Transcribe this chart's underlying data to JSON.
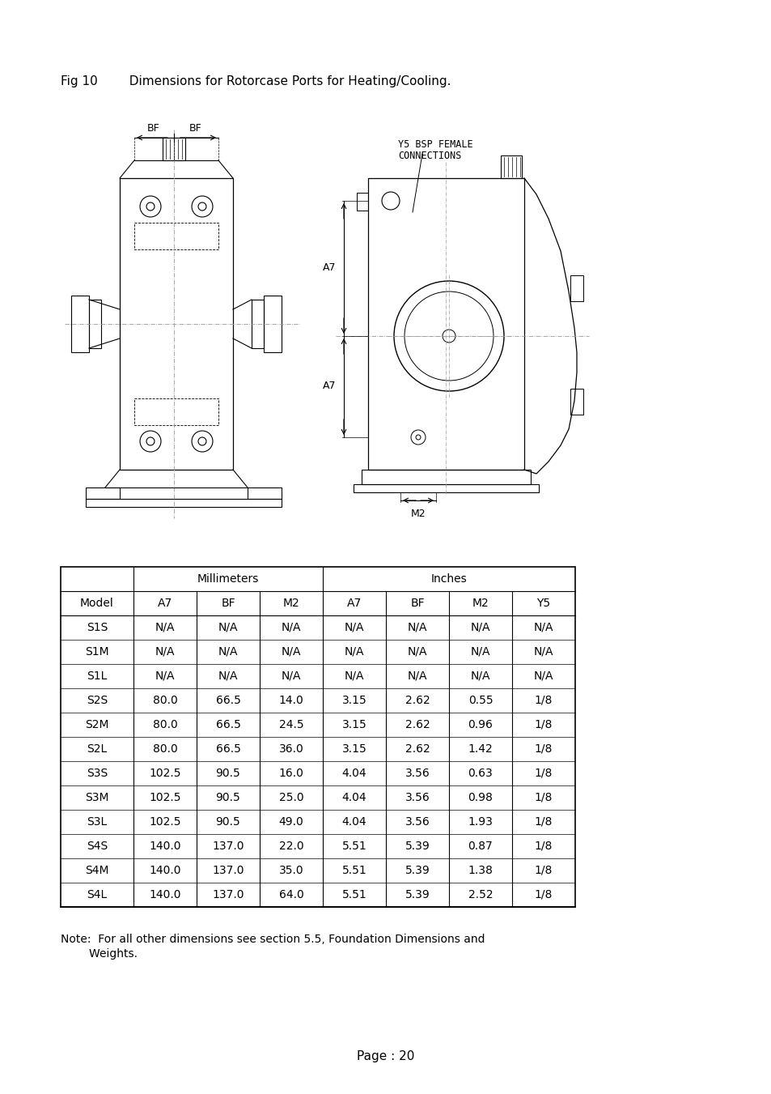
{
  "title": "Fig 10        Dimensions for Rotorcase Ports for Heating/Cooling.",
  "page": "Page : 20",
  "note_line1": "Note:  For all other dimensions see section 5.5, Foundation Dimensions and",
  "note_line2": "        Weights.",
  "table_headers_row2": [
    "Model",
    "A7",
    "BF",
    "M2",
    "A7",
    "BF",
    "M2",
    "Y5"
  ],
  "table_data": [
    [
      "S1S",
      "N/A",
      "N/A",
      "N/A",
      "N/A",
      "N/A",
      "N/A",
      "N/A"
    ],
    [
      "S1M",
      "N/A",
      "N/A",
      "N/A",
      "N/A",
      "N/A",
      "N/A",
      "N/A"
    ],
    [
      "S1L",
      "N/A",
      "N/A",
      "N/A",
      "N/A",
      "N/A",
      "N/A",
      "N/A"
    ],
    [
      "S2S",
      "80.0",
      "66.5",
      "14.0",
      "3.15",
      "2.62",
      "0.55",
      "1/8"
    ],
    [
      "S2M",
      "80.0",
      "66.5",
      "24.5",
      "3.15",
      "2.62",
      "0.96",
      "1/8"
    ],
    [
      "S2L",
      "80.0",
      "66.5",
      "36.0",
      "3.15",
      "2.62",
      "1.42",
      "1/8"
    ],
    [
      "S3S",
      "102.5",
      "90.5",
      "16.0",
      "4.04",
      "3.56",
      "0.63",
      "1/8"
    ],
    [
      "S3M",
      "102.5",
      "90.5",
      "25.0",
      "4.04",
      "3.56",
      "0.98",
      "1/8"
    ],
    [
      "S3L",
      "102.5",
      "90.5",
      "49.0",
      "4.04",
      "3.56",
      "1.93",
      "1/8"
    ],
    [
      "S4S",
      "140.0",
      "137.0",
      "22.0",
      "5.51",
      "5.39",
      "0.87",
      "1/8"
    ],
    [
      "S4M",
      "140.0",
      "137.0",
      "35.0",
      "5.51",
      "5.39",
      "1.38",
      "1/8"
    ],
    [
      "S4L",
      "140.0",
      "137.0",
      "64.0",
      "5.51",
      "5.39",
      "2.52",
      "1/8"
    ]
  ],
  "bg_color": "#ffffff",
  "text_color": "#000000",
  "line_color": "#000000",
  "dim_color": "#000000"
}
